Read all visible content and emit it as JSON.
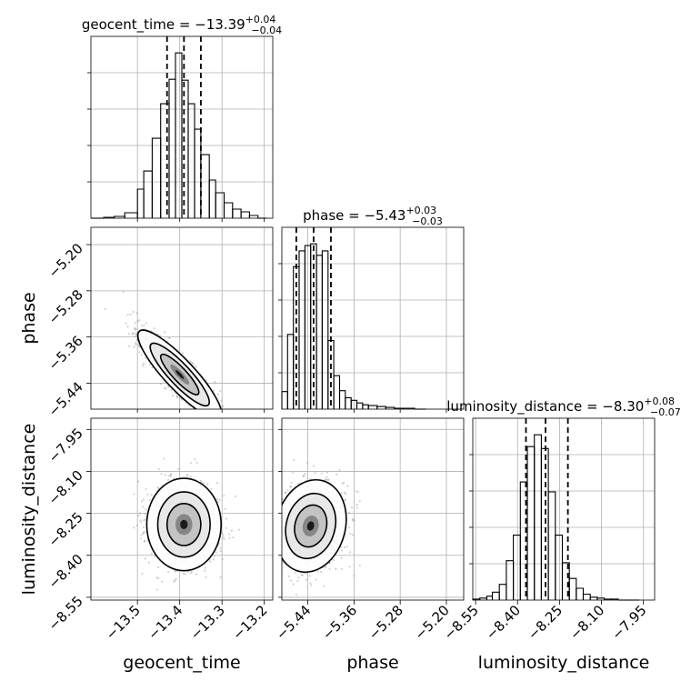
{
  "chart_data": {
    "type": "corner",
    "params": [
      "geocent_time",
      "phase",
      "luminosity_distance"
    ],
    "axis_labels": {
      "geocent_time": "geocent_time",
      "phase": "phase",
      "luminosity_distance": "luminosity_distance"
    },
    "titles": [
      {
        "name": "geocent_time",
        "prefix": "geocent_time = ",
        "median": "−13.39",
        "plus": "+0.04",
        "minus": "−0.04"
      },
      {
        "name": "phase",
        "prefix": "phase = ",
        "median": "−5.43",
        "plus": "+0.03",
        "minus": "−0.03"
      },
      {
        "name": "luminosity_distance",
        "prefix": "luminosity_distance = ",
        "median": "−8.30",
        "plus": "+0.08",
        "minus": "−0.07"
      }
    ],
    "ranges": {
      "geocent_time": [
        -13.61,
        -13.18
      ],
      "phase": [
        -5.485,
        -5.17
      ],
      "luminosity_distance": [
        -8.56,
        -7.91
      ]
    },
    "ticks": {
      "geocent_time": [
        -13.5,
        -13.4,
        -13.3,
        -13.2
      ],
      "phase": [
        -5.44,
        -5.36,
        -5.28,
        -5.2
      ],
      "luminosity_distance": [
        -8.55,
        -8.4,
        -8.25,
        -8.1,
        -7.95
      ]
    },
    "tick_labels": {
      "geocent_time": [
        "−13.5",
        "−13.4",
        "−13.3",
        "−13.2"
      ],
      "phase": [
        "−5.44",
        "−5.36",
        "−5.28",
        "−5.20"
      ],
      "luminosity_distance": [
        "−8.55",
        "−8.40",
        "−8.25",
        "−8.10",
        "−7.95"
      ]
    },
    "quantiles": {
      "geocent_time": [
        -13.43,
        -13.39,
        -13.35
      ],
      "phase": [
        -5.46,
        -5.43,
        -5.4
      ],
      "luminosity_distance": [
        -8.37,
        -8.3,
        -8.22
      ]
    },
    "histograms": {
      "geocent_time": {
        "edges": [
          -13.61,
          -13.58,
          -13.555,
          -13.53,
          -13.5,
          -13.485,
          -13.465,
          -13.445,
          -13.425,
          -13.41,
          -13.395,
          -13.38,
          -13.365,
          -13.35,
          -13.33,
          -13.315,
          -13.295,
          -13.275,
          -13.255,
          -13.235,
          -13.215,
          -13.195
        ],
        "counts": [
          0,
          1,
          2,
          6,
          32,
          52,
          88,
          126,
          153,
          182,
          152,
          126,
          98,
          70,
          42,
          28,
          17,
          10,
          7,
          3,
          0
        ]
      },
      "phase": {
        "edges": [
          -5.485,
          -5.475,
          -5.465,
          -5.455,
          -5.445,
          -5.435,
          -5.425,
          -5.415,
          -5.405,
          -5.395,
          -5.385,
          -5.375,
          -5.365,
          -5.355,
          -5.345,
          -5.335,
          -5.32,
          -5.305,
          -5.29,
          -5.275,
          -5.255,
          -5.235
        ],
        "counts": [
          20,
          85,
          162,
          180,
          186,
          188,
          175,
          180,
          78,
          38,
          21,
          13,
          10,
          7,
          5,
          4,
          3,
          2,
          1,
          1,
          0
        ]
      },
      "luminosity_distance": {
        "edges": [
          -8.56,
          -8.535,
          -8.51,
          -8.49,
          -8.465,
          -8.44,
          -8.415,
          -8.39,
          -8.365,
          -8.34,
          -8.315,
          -8.29,
          -8.265,
          -8.24,
          -8.215,
          -8.19,
          -8.165,
          -8.14,
          -8.115,
          -8.09,
          -8.065,
          -8.04,
          -8.015,
          -7.99,
          -7.965
        ],
        "counts": [
          1,
          2,
          4,
          8,
          16,
          40,
          66,
          120,
          156,
          168,
          154,
          110,
          66,
          38,
          22,
          12,
          6,
          3,
          2,
          1,
          1,
          0,
          0,
          0
        ]
      }
    },
    "scatter_2d": [
      {
        "x": "geocent_time",
        "y": "phase",
        "center": [
          -13.4,
          -5.425
        ],
        "sd": [
          0.045,
          0.035
        ],
        "corr": -0.88
      },
      {
        "x": "geocent_time",
        "y": "luminosity_distance",
        "center": [
          -13.39,
          -8.29
        ],
        "sd": [
          0.04,
          0.075
        ],
        "corr": 0.0
      },
      {
        "x": "phase",
        "y": "luminosity_distance",
        "center": [
          -5.435,
          -8.295
        ],
        "sd": [
          0.028,
          0.075
        ],
        "corr": 0.15
      }
    ],
    "colors": {
      "hist": "#000000",
      "points": "#7f7f7f",
      "grid": "#b0b0b0"
    }
  }
}
